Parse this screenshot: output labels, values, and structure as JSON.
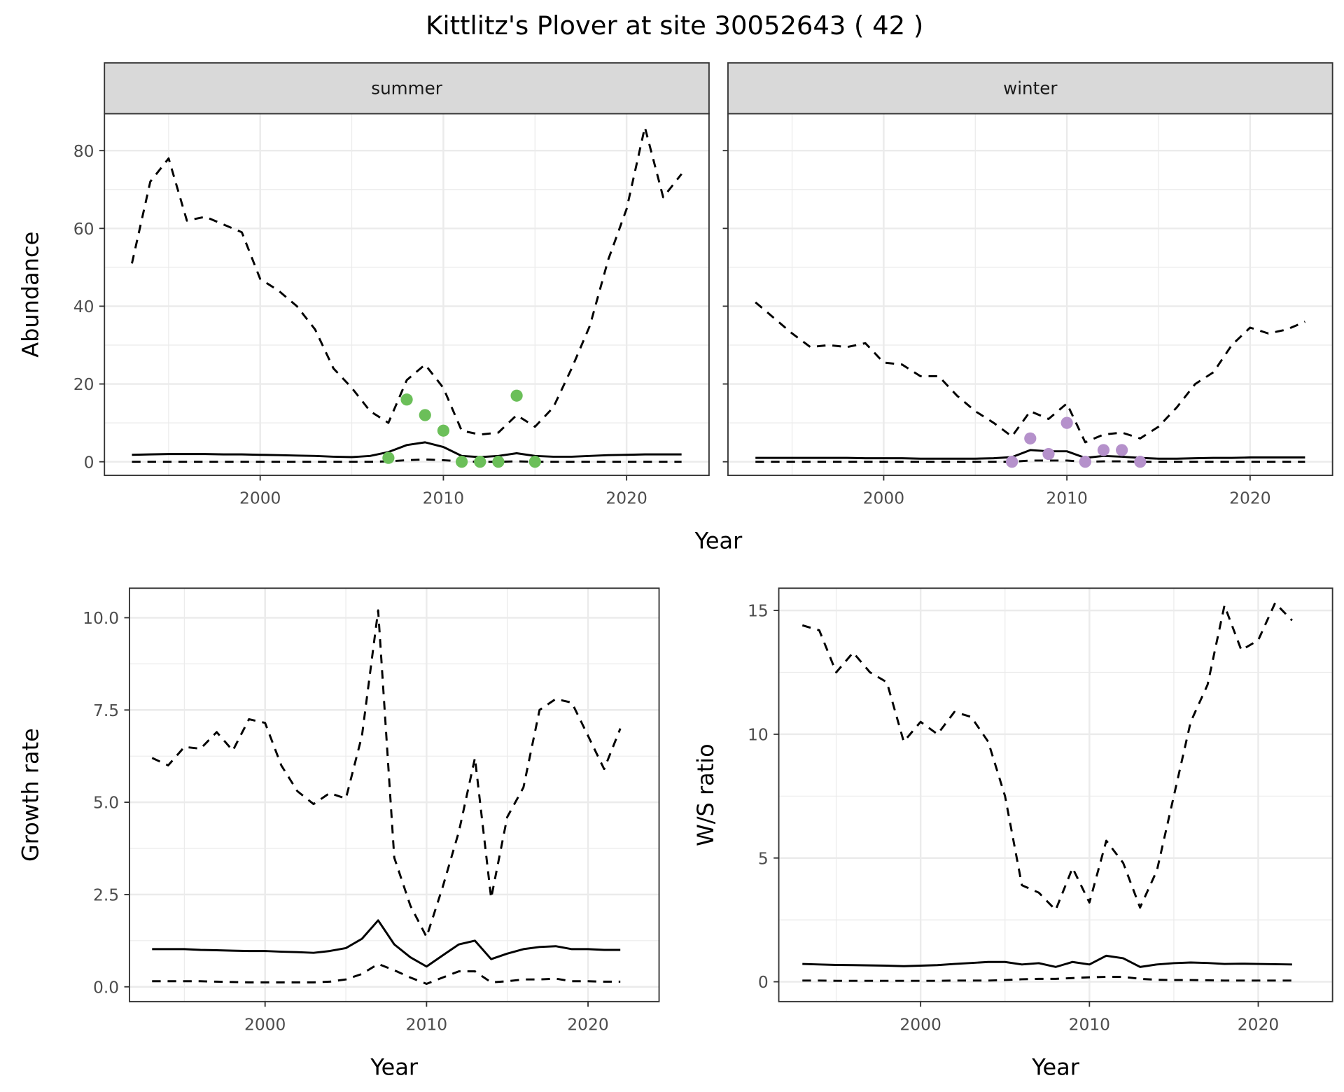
{
  "title": "Kittlitz's Plover at site 30052643 ( 42 )",
  "colors": {
    "summer_points": "#6BBF59",
    "winter_points": "#B591CB",
    "grid": "#EBEBEB",
    "strip": "#D9D9D9"
  },
  "chart_data": [
    {
      "id": "summer",
      "type": "line",
      "strip": "summer",
      "xlabel": "Year",
      "ylabel": "Abundance",
      "xticks": [
        2000,
        2010,
        2020
      ],
      "yticks": [
        0,
        20,
        40,
        60,
        80
      ],
      "xlim": [
        1991.5,
        2024.5
      ],
      "ylim": [
        -3.5,
        89.5
      ],
      "x": [
        1993,
        1994,
        1995,
        1996,
        1997,
        1998,
        1999,
        2000,
        2001,
        2002,
        2003,
        2004,
        2005,
        2006,
        2007,
        2008,
        2009,
        2010,
        2011,
        2012,
        2013,
        2014,
        2015,
        2016,
        2017,
        2018,
        2019,
        2020,
        2021,
        2022,
        2023
      ],
      "series": [
        {
          "name": "upper",
          "style": "dashed",
          "values": [
            51,
            72,
            78,
            62,
            63,
            61,
            59,
            47,
            44,
            40,
            34,
            24,
            19,
            13,
            10,
            21,
            25,
            19,
            8,
            7,
            7.5,
            12,
            9,
            14,
            24,
            35,
            52,
            65,
            86,
            68,
            74
          ]
        },
        {
          "name": "mean",
          "style": "solid",
          "values": [
            1.8,
            1.9,
            2.0,
            2.0,
            2.0,
            1.9,
            1.9,
            1.8,
            1.7,
            1.6,
            1.5,
            1.3,
            1.2,
            1.5,
            2.5,
            4.3,
            5.0,
            3.8,
            1.5,
            1.2,
            1.5,
            2.2,
            1.5,
            1.3,
            1.3,
            1.5,
            1.7,
            1.8,
            1.9,
            1.9,
            1.9
          ]
        },
        {
          "name": "lower",
          "style": "dashed",
          "values": [
            0,
            0,
            0,
            0,
            0,
            0,
            0,
            0,
            0,
            0,
            0,
            0,
            0,
            0,
            0.1,
            0.4,
            0.6,
            0.4,
            0.1,
            0,
            0,
            0.1,
            0,
            0,
            0,
            0,
            0,
            0,
            0,
            0,
            0
          ]
        }
      ],
      "points": {
        "x": [
          2007,
          2008,
          2009,
          2010,
          2011,
          2012,
          2013,
          2014,
          2015
        ],
        "y": [
          1,
          16,
          12,
          8,
          0,
          0,
          0,
          17,
          0
        ]
      }
    },
    {
      "id": "winter",
      "type": "line",
      "strip": "winter",
      "xlabel": "Year",
      "ylabel": "Abundance",
      "xticks": [
        2000,
        2010,
        2020
      ],
      "yticks": [
        0,
        20,
        40,
        60,
        80
      ],
      "xlim": [
        1991.5,
        2024.5
      ],
      "ylim": [
        -3.5,
        89.5
      ],
      "x": [
        1993,
        1994,
        1995,
        1996,
        1997,
        1998,
        1999,
        2000,
        2001,
        2002,
        2003,
        2004,
        2005,
        2006,
        2007,
        2008,
        2009,
        2010,
        2011,
        2012,
        2013,
        2014,
        2015,
        2016,
        2017,
        2018,
        2019,
        2020,
        2021,
        2022,
        2023
      ],
      "series": [
        {
          "name": "upper",
          "style": "dashed",
          "values": [
            41,
            37,
            33,
            29.5,
            30,
            29.5,
            30.5,
            25.5,
            25,
            22,
            22,
            17,
            13,
            10,
            6.5,
            13,
            11,
            15,
            5,
            7,
            7.5,
            6,
            9,
            14,
            20,
            23,
            30,
            34.5,
            33,
            34,
            36
          ]
        },
        {
          "name": "mean",
          "style": "solid",
          "values": [
            1,
            1,
            1,
            1,
            1,
            1,
            0.9,
            0.9,
            0.9,
            0.8,
            0.8,
            0.8,
            0.8,
            0.9,
            1.2,
            3,
            2.7,
            2.7,
            1,
            1.5,
            1.3,
            1,
            0.8,
            0.8,
            0.9,
            1,
            1,
            1.1,
            1.1,
            1.1,
            1.1
          ]
        },
        {
          "name": "lower",
          "style": "dashed",
          "values": [
            0,
            0,
            0,
            0,
            0,
            0,
            0,
            0,
            0,
            0,
            0,
            0,
            0,
            0,
            0,
            0.3,
            0.3,
            0.3,
            0,
            0.1,
            0.1,
            0,
            0,
            0,
            0,
            0,
            0,
            0,
            0,
            0,
            0
          ]
        }
      ],
      "points": {
        "x": [
          2007,
          2008,
          2009,
          2010,
          2011,
          2012,
          2013,
          2014
        ],
        "y": [
          0,
          6,
          2,
          10,
          0,
          3,
          3,
          0
        ]
      }
    },
    {
      "id": "growth",
      "type": "line",
      "xlabel": "Year",
      "ylabel": "Growth rate",
      "xticks": [
        2000,
        2010,
        2020
      ],
      "yticks": [
        0.0,
        2.5,
        5.0,
        7.5,
        10.0
      ],
      "ytick_labels": [
        "0.0",
        "2.5",
        "5.0",
        "7.5",
        "10.0"
      ],
      "xlim": [
        1991.6,
        2024.4
      ],
      "ylim": [
        -0.4,
        10.8
      ],
      "x": [
        1993,
        1994,
        1995,
        1996,
        1997,
        1998,
        1999,
        2000,
        2001,
        2002,
        2003,
        2004,
        2005,
        2006,
        2007,
        2008,
        2009,
        2010,
        2011,
        2012,
        2013,
        2014,
        2015,
        2016,
        2017,
        2018,
        2019,
        2020,
        2021,
        2022
      ],
      "series": [
        {
          "name": "upper",
          "style": "dashed",
          "values": [
            6.2,
            6.0,
            6.5,
            6.45,
            6.9,
            6.4,
            7.25,
            7.15,
            6.0,
            5.3,
            4.95,
            5.25,
            5.1,
            6.8,
            10.2,
            3.5,
            2.2,
            1.35,
            2.7,
            4.2,
            6.2,
            2.4,
            4.6,
            5.4,
            7.5,
            7.8,
            7.7,
            6.8,
            5.9,
            7.0
          ]
        },
        {
          "name": "mean",
          "style": "solid",
          "values": [
            1.02,
            1.02,
            1.02,
            1.0,
            0.99,
            0.98,
            0.97,
            0.97,
            0.95,
            0.94,
            0.92,
            0.97,
            1.05,
            1.3,
            1.8,
            1.15,
            0.8,
            0.55,
            0.85,
            1.15,
            1.25,
            0.75,
            0.9,
            1.02,
            1.08,
            1.1,
            1.02,
            1.02,
            1.0,
            1.0
          ]
        },
        {
          "name": "lower",
          "style": "dashed",
          "values": [
            0.15,
            0.15,
            0.15,
            0.15,
            0.14,
            0.13,
            0.12,
            0.12,
            0.12,
            0.12,
            0.12,
            0.14,
            0.2,
            0.35,
            0.62,
            0.45,
            0.25,
            0.08,
            0.25,
            0.42,
            0.42,
            0.12,
            0.15,
            0.2,
            0.2,
            0.22,
            0.15,
            0.15,
            0.14,
            0.14
          ]
        }
      ]
    },
    {
      "id": "ratio",
      "type": "line",
      "xlabel": "Year",
      "ylabel": "W/S ratio",
      "xticks": [
        2000,
        2010,
        2020
      ],
      "yticks": [
        0,
        5,
        10,
        15
      ],
      "xlim": [
        1991.6,
        2024.4
      ],
      "ylim": [
        -0.8,
        15.9
      ],
      "x": [
        1993,
        1994,
        1995,
        1996,
        1997,
        1998,
        1999,
        2000,
        2001,
        2002,
        2003,
        2004,
        2005,
        2006,
        2007,
        2008,
        2009,
        2010,
        2011,
        2012,
        2013,
        2014,
        2015,
        2016,
        2017,
        2018,
        2019,
        2020,
        2021,
        2022
      ],
      "series": [
        {
          "name": "upper",
          "style": "dashed",
          "values": [
            14.4,
            14.2,
            12.5,
            13.3,
            12.5,
            12.1,
            9.7,
            10.5,
            10.0,
            10.9,
            10.7,
            9.7,
            7.5,
            3.9,
            3.6,
            2.9,
            4.6,
            3.2,
            5.7,
            4.8,
            3.0,
            4.5,
            7.5,
            10.5,
            12.0,
            15.2,
            13.4,
            13.8,
            15.3,
            14.6
          ]
        },
        {
          "name": "mean",
          "style": "solid",
          "values": [
            0.72,
            0.7,
            0.68,
            0.67,
            0.66,
            0.65,
            0.63,
            0.65,
            0.67,
            0.72,
            0.76,
            0.8,
            0.8,
            0.7,
            0.75,
            0.6,
            0.8,
            0.7,
            1.05,
            0.95,
            0.6,
            0.7,
            0.75,
            0.78,
            0.76,
            0.72,
            0.73,
            0.72,
            0.71,
            0.7
          ]
        },
        {
          "name": "lower",
          "style": "dashed",
          "values": [
            0.05,
            0.05,
            0.04,
            0.04,
            0.04,
            0.04,
            0.04,
            0.04,
            0.04,
            0.05,
            0.05,
            0.05,
            0.07,
            0.1,
            0.12,
            0.12,
            0.15,
            0.18,
            0.2,
            0.2,
            0.12,
            0.08,
            0.07,
            0.07,
            0.06,
            0.05,
            0.05,
            0.05,
            0.05,
            0.05
          ]
        }
      ]
    }
  ]
}
